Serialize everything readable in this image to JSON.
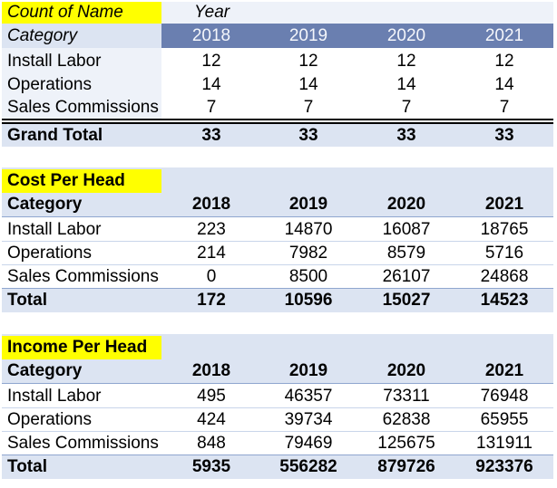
{
  "colors": {
    "highlight": "#ffff00",
    "header_band": "#6a7fb0",
    "light_fill": "#dce4f2",
    "pale_fill": "#eef2f9"
  },
  "pivot": {
    "corner_label": "Count of Name",
    "col_field_label": "Year",
    "row_field_label": "Category",
    "years": [
      "2018",
      "2019",
      "2020",
      "2021"
    ],
    "rows": [
      {
        "label": "Install Labor",
        "values": [
          "12",
          "12",
          "12",
          "12"
        ]
      },
      {
        "label": "Operations",
        "values": [
          "14",
          "14",
          "14",
          "14"
        ]
      },
      {
        "label": "Sales Commissions",
        "values": [
          "7",
          "7",
          "7",
          "7"
        ]
      }
    ],
    "total": {
      "label": "Grand Total",
      "values": [
        "33",
        "33",
        "33",
        "33"
      ]
    }
  },
  "cost": {
    "title": "Cost Per Head",
    "category_label": "Category",
    "years": [
      "2018",
      "2019",
      "2020",
      "2021"
    ],
    "rows": [
      {
        "label": "Install Labor",
        "values": [
          "223",
          "14870",
          "16087",
          "18765"
        ]
      },
      {
        "label": "Operations",
        "values": [
          "214",
          "7982",
          "8579",
          "5716"
        ]
      },
      {
        "label": "Sales Commissions",
        "values": [
          "0",
          "8500",
          "26107",
          "24868"
        ]
      }
    ],
    "total": {
      "label": "Total",
      "values": [
        "172",
        "10596",
        "15027",
        "14523"
      ]
    }
  },
  "income": {
    "title": "Income Per Head",
    "category_label": "Category",
    "years": [
      "2018",
      "2019",
      "2020",
      "2021"
    ],
    "rows": [
      {
        "label": "Install Labor",
        "values": [
          "495",
          "46357",
          "73311",
          "76948"
        ]
      },
      {
        "label": "Operations",
        "values": [
          "424",
          "39734",
          "62838",
          "65955"
        ]
      },
      {
        "label": "Sales Commissions",
        "values": [
          "848",
          "79469",
          "125675",
          "131911"
        ]
      }
    ],
    "total": {
      "label": "Total",
      "values": [
        "5935",
        "556282",
        "879726",
        "923376"
      ]
    }
  }
}
